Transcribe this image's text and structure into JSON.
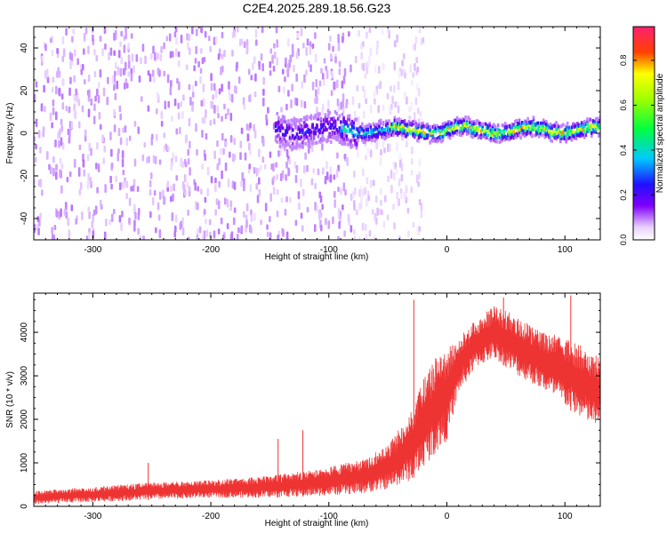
{
  "chart_data": [
    {
      "type": "heatmap",
      "title": "C2E4.2025.289.18.56.G23",
      "xlabel": "Height of straight line (km)",
      "ylabel": "Frequency (Hz)",
      "xlim": [
        -350,
        130
      ],
      "ylim": [
        -50,
        50
      ],
      "xticks": [
        -300,
        -200,
        -100,
        0,
        100
      ],
      "yticks": [
        -40,
        -20,
        0,
        20,
        40
      ],
      "colorbar": {
        "label": "Normalized spectral amplitude",
        "range": [
          0.0,
          0.95
        ],
        "ticks": [
          0.0,
          0.2,
          0.4,
          0.6,
          0.8
        ],
        "colormap": [
          "#ffffff",
          "#c080ff",
          "#7a00e6",
          "#3010ff",
          "#00c8ff",
          "#00ff60",
          "#ffff00",
          "#ff2020",
          "#ff2070"
        ]
      },
      "regions": [
        {
          "x_range": [
            -350,
            -80
          ],
          "y_range": [
            -50,
            50
          ],
          "amplitude": 0.1,
          "pattern": "scattered noise"
        },
        {
          "x_range": [
            -80,
            -20
          ],
          "y_range": [
            -50,
            50
          ],
          "amplitude": 0.05,
          "pattern": "sparse noise"
        },
        {
          "x_range": [
            -145,
            130
          ],
          "y_center": 1.5,
          "y_halfwidth": 4,
          "amplitude": 0.8,
          "pattern": "narrow signal line"
        }
      ]
    },
    {
      "type": "line",
      "title": "",
      "xlabel": "Height of straight line (km)",
      "ylabel": "SNR (10 * v/v)",
      "xlim": [
        -350,
        130
      ],
      "ylim": [
        0,
        4900
      ],
      "xticks": [
        -300,
        -200,
        -100,
        0,
        100
      ],
      "yticks": [
        0,
        1000,
        2000,
        3000,
        4000
      ],
      "color": "#ee3333",
      "envelope": {
        "x": [
          -350,
          -300,
          -250,
          -200,
          -150,
          -100,
          -70,
          -50,
          -30,
          -20,
          -10,
          0,
          10,
          25,
          40,
          60,
          80,
          100,
          120,
          130
        ],
        "low": [
          50,
          100,
          150,
          200,
          200,
          250,
          300,
          400,
          600,
          900,
          1200,
          1500,
          2600,
          3200,
          3400,
          3000,
          2700,
          2300,
          1900,
          1800
        ],
        "high": [
          350,
          450,
          550,
          600,
          700,
          900,
          1100,
          1400,
          2200,
          2900,
          3400,
          3600,
          3900,
          4300,
          4600,
          4400,
          4000,
          3900,
          3600,
          3400
        ]
      },
      "spikes": [
        {
          "x": -253,
          "y": 1000
        },
        {
          "x": -143,
          "y": 1550
        },
        {
          "x": -122,
          "y": 1750
        },
        {
          "x": -28,
          "y": 4750
        },
        {
          "x": 48,
          "y": 4800
        },
        {
          "x": 105,
          "y": 4850
        }
      ]
    }
  ]
}
